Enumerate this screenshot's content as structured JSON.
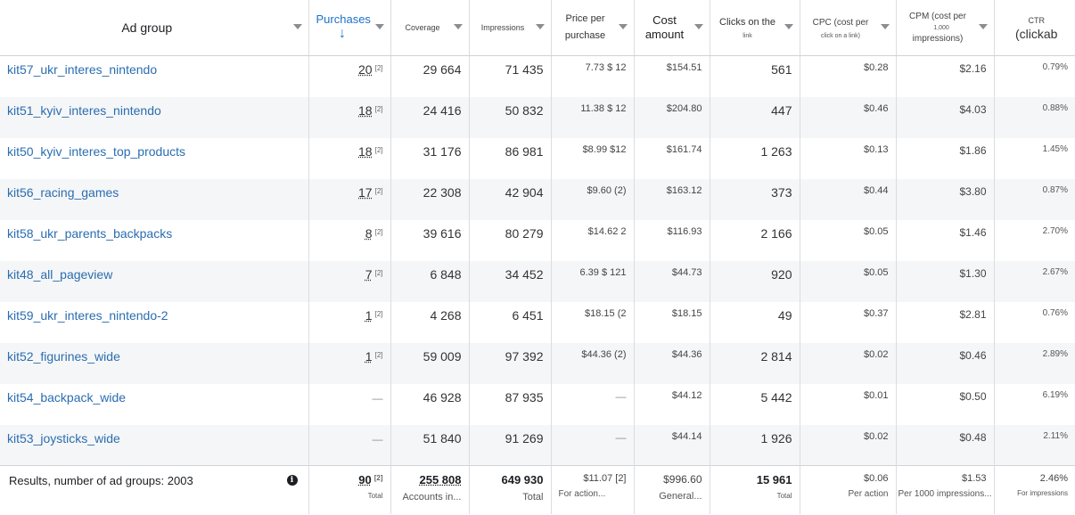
{
  "columns": [
    {
      "key": "ad_group",
      "label": "Ad group"
    },
    {
      "key": "purchases",
      "label": "Purchases",
      "sort_icon": "arrow-down-icon"
    },
    {
      "key": "coverage",
      "label": "Coverage"
    },
    {
      "key": "impressions",
      "label": "Impressions"
    },
    {
      "key": "price_per_purchase",
      "label": "Price per purchase"
    },
    {
      "key": "cost_amount",
      "label": "Cost amount"
    },
    {
      "key": "clicks",
      "label": "Clicks on the",
      "sub": "link"
    },
    {
      "key": "cpc",
      "label": "CPC (cost per",
      "sub": "click on a link)"
    },
    {
      "key": "cpm",
      "label": "CPM (cost per",
      "sub": "1,000",
      "sub2": "impressions)"
    },
    {
      "key": "ctr",
      "label": "CTR",
      "sub": "(clickab"
    }
  ],
  "rows": [
    {
      "name": "kit57_ukr_interes_nintendo",
      "purchases": "20",
      "ref": "[2]",
      "coverage": "29 664",
      "impressions": "71 435",
      "price": "7.73 $ 12",
      "cost": "$154.51",
      "clicks": "561",
      "cpc": "$0.28",
      "cpm": "$2.16",
      "ctr": "0.79%"
    },
    {
      "name": "kit51_kyiv_interes_nintendo",
      "purchases": "18",
      "ref": "[2]",
      "coverage": "24 416",
      "impressions": "50 832",
      "price": "11.38 $ 12",
      "cost": "$204.80",
      "clicks": "447",
      "cpc": "$0.46",
      "cpm": "$4.03",
      "ctr": "0.88%"
    },
    {
      "name": "kit50_kyiv_interes_top_products",
      "purchases": "18",
      "ref": "[2]",
      "coverage": "31 176",
      "impressions": "86 981",
      "price": "$8.99 $12",
      "cost": "$161.74",
      "clicks": "1 263",
      "cpc": "$0.13",
      "cpm": "$1.86",
      "ctr": "1.45%"
    },
    {
      "name": "kit56_racing_games",
      "purchases": "17",
      "ref": "[2]",
      "coverage": "22 308",
      "impressions": "42 904",
      "price": "$9.60 (2)",
      "cost": "$163.12",
      "clicks": "373",
      "cpc": "$0.44",
      "cpm": "$3.80",
      "ctr": "0.87%"
    },
    {
      "name": "kit58_ukr_parents_backpacks",
      "purchases": "8",
      "ref": "[2]",
      "coverage": "39 616",
      "impressions": "80 279",
      "price": "$14.62 2",
      "cost": "$116.93",
      "clicks": "2 166",
      "cpc": "$0.05",
      "cpm": "$1.46",
      "ctr": "2.70%"
    },
    {
      "name": "kit48_all_pageview",
      "purchases": "7",
      "ref": "[2]",
      "coverage": "6 848",
      "impressions": "34 452",
      "price": "6.39 $ 121",
      "cost": "$44.73",
      "clicks": "920",
      "cpc": "$0.05",
      "cpm": "$1.30",
      "ctr": "2.67%"
    },
    {
      "name": "kit59_ukr_interes_nintendo-2",
      "purchases": "1",
      "ref": "[2]",
      "coverage": "4 268",
      "impressions": "6 451",
      "price": "$18.15 (2",
      "cost": "$18.15",
      "clicks": "49",
      "cpc": "$0.37",
      "cpm": "$2.81",
      "ctr": "0.76%"
    },
    {
      "name": "kit52_figurines_wide",
      "purchases": "1",
      "ref": "[2]",
      "coverage": "59 009",
      "impressions": "97 392",
      "price": "$44.36 (2)",
      "cost": "$44.36",
      "clicks": "2 814",
      "cpc": "$0.02",
      "cpm": "$0.46",
      "ctr": "2.89%"
    },
    {
      "name": "kit54_backpack_wide",
      "purchases": "—",
      "ref": "",
      "coverage": "46 928",
      "impressions": "87 935",
      "price": "—",
      "cost": "$44.12",
      "clicks": "5 442",
      "cpc": "$0.01",
      "cpm": "$0.50",
      "ctr": "6.19%"
    },
    {
      "name": "kit53_joysticks_wide",
      "purchases": "—",
      "ref": "",
      "coverage": "51 840",
      "impressions": "91 269",
      "price": "—",
      "cost": "$44.14",
      "clicks": "1 926",
      "cpc": "$0.02",
      "cpm": "$0.48",
      "ctr": "2.11%"
    }
  ],
  "footer": {
    "label": "Results, number of ad groups: 2003",
    "info_icon": "info-icon",
    "purchases": "90",
    "purchases_ref": "[2]",
    "purchases_sub": "Total",
    "coverage": "255 808",
    "coverage_sub": "Accounts in...",
    "impressions": "649 930",
    "impressions_sub": "Total",
    "price": "$11.07 [2]",
    "price_sub": "For action...",
    "cost": "$996.60",
    "cost_sub": "General...",
    "clicks": "15 961",
    "clicks_sub": "Total",
    "cpc": "$0.06",
    "cpc_sub": "Per action",
    "cpm": "$1.53",
    "cpm_sub": "Per 1000 impressions...",
    "ctr": "2.46%",
    "ctr_sub": "For impressions"
  }
}
